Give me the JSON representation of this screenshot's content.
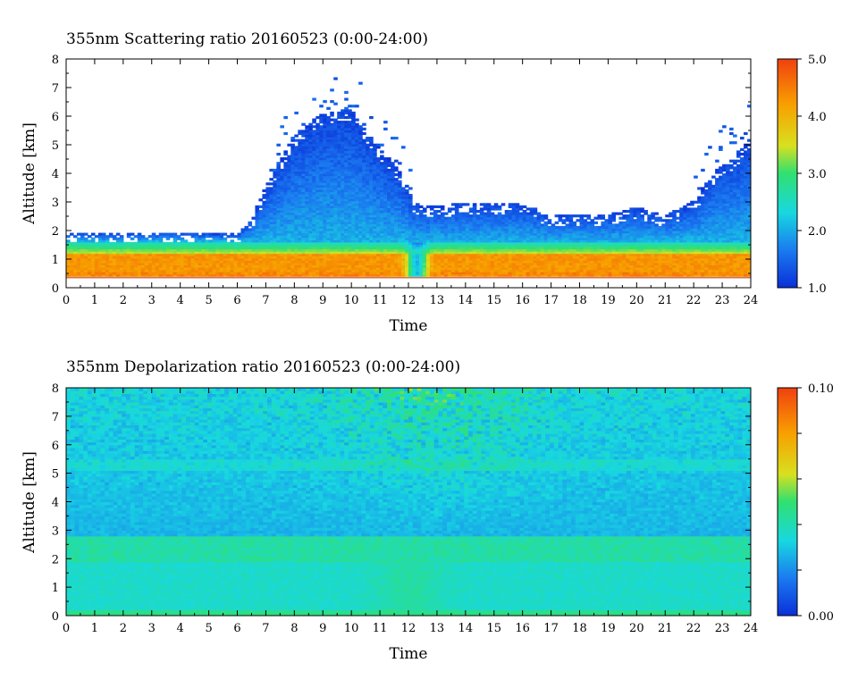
{
  "chart_data": [
    {
      "type": "heatmap",
      "title": "355nm Scattering ratio  20160523 (0:00-24:00)",
      "xlabel": "Time",
      "ylabel": "Altitude [km]",
      "xlim": [
        0,
        24
      ],
      "ylim": [
        0,
        8
      ],
      "x_ticks": [
        "0",
        "1",
        "2",
        "3",
        "4",
        "5",
        "6",
        "7",
        "8",
        "9",
        "10",
        "11",
        "12",
        "13",
        "14",
        "15",
        "16",
        "17",
        "18",
        "19",
        "20",
        "21",
        "22",
        "23",
        "24"
      ],
      "y_ticks": [
        "0",
        "1",
        "2",
        "3",
        "4",
        "5",
        "6",
        "7",
        "8"
      ],
      "colorbar": {
        "range": [
          1.0,
          5.0
        ],
        "tick_values": [
          1.0,
          2.0,
          3.0,
          4.0,
          5.0
        ],
        "tick_labels": [
          "1.0",
          "2.0",
          "3.0",
          "4.0",
          "5.0"
        ],
        "colors": [
          "#0a30d8",
          "#1a78f0",
          "#18d8e0",
          "#30e070",
          "#d8e020",
          "#f8a000",
          "#f04010"
        ]
      },
      "cloud_top_km": [
        {
          "t": 0,
          "top": 1.9
        },
        {
          "t": 2,
          "top": 1.85
        },
        {
          "t": 4,
          "top": 1.9
        },
        {
          "t": 6,
          "top": 1.85
        },
        {
          "t": 6.5,
          "top": 2.4
        },
        {
          "t": 7,
          "top": 3.5
        },
        {
          "t": 8,
          "top": 5.3
        },
        {
          "t": 9,
          "top": 6.1
        },
        {
          "t": 10,
          "top": 6.2
        },
        {
          "t": 10.5,
          "top": 5.5
        },
        {
          "t": 11,
          "top": 4.8
        },
        {
          "t": 11.7,
          "top": 4.1
        },
        {
          "t": 12.2,
          "top": 2.9
        },
        {
          "t": 13,
          "top": 2.8
        },
        {
          "t": 14,
          "top": 2.95
        },
        {
          "t": 16,
          "top": 2.9
        },
        {
          "t": 17,
          "top": 2.5
        },
        {
          "t": 19,
          "top": 2.55
        },
        {
          "t": 20,
          "top": 2.8
        },
        {
          "t": 21,
          "top": 2.5
        },
        {
          "t": 22,
          "top": 3.0
        },
        {
          "t": 22.7,
          "top": 4.0
        },
        {
          "t": 23.5,
          "top": 4.6
        },
        {
          "t": 24,
          "top": 5.2
        }
      ],
      "aerosol_layer_km": {
        "bottom": 0.4,
        "peak_low": 0.55,
        "peak_high": 1.05,
        "top_of_green": 1.6
      },
      "ground_line_km": 0.35
    },
    {
      "type": "heatmap",
      "title": "355nm Depolarization ratio  20160523 (0:00-24:00)",
      "xlabel": "Time",
      "ylabel": "Altitude [km]",
      "xlim": [
        0,
        24
      ],
      "ylim": [
        0,
        8
      ],
      "x_ticks": [
        "0",
        "1",
        "2",
        "3",
        "4",
        "5",
        "6",
        "7",
        "8",
        "9",
        "10",
        "11",
        "12",
        "13",
        "14",
        "15",
        "16",
        "17",
        "18",
        "19",
        "20",
        "21",
        "22",
        "23",
        "24"
      ],
      "y_ticks": [
        "0",
        "1",
        "2",
        "3",
        "4",
        "5",
        "6",
        "7",
        "8"
      ],
      "colorbar": {
        "range": [
          0.0,
          0.1
        ],
        "tick_values": [
          0.0,
          0.02,
          0.04,
          0.06,
          0.08,
          0.1
        ],
        "tick_labels": [
          "0.00",
          "",
          "",
          "",
          "",
          "0.10"
        ],
        "colors": [
          "#0a30d8",
          "#1a78f0",
          "#18d8e0",
          "#30e070",
          "#d8e020",
          "#f8a000",
          "#f04010"
        ]
      },
      "layers_km": {
        "surface_band": 0.15,
        "lower_layer_top": 1.9,
        "elevated_layer": [
          2.0,
          2.8
        ]
      }
    }
  ]
}
